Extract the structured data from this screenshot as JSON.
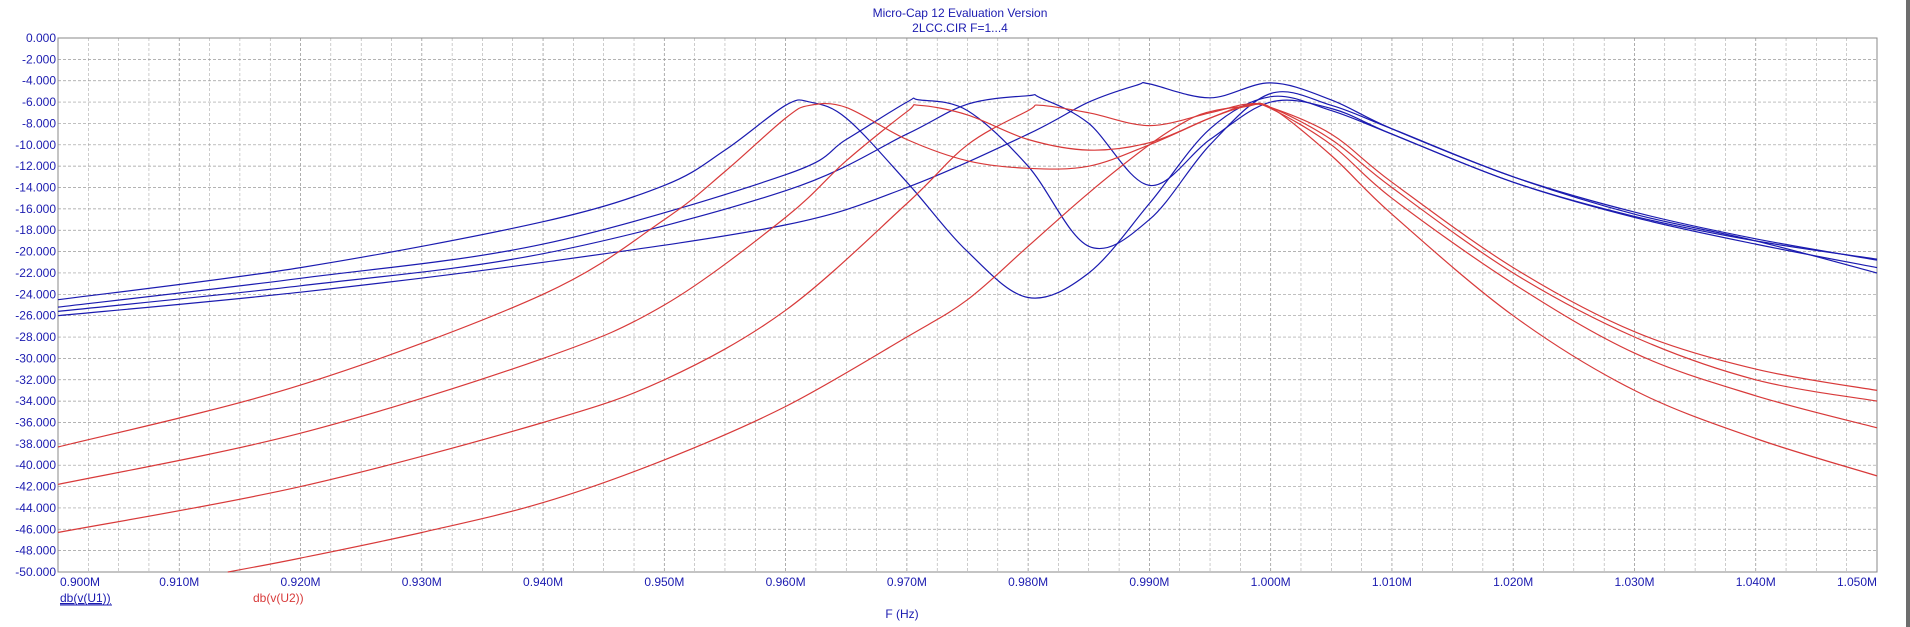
{
  "window": {
    "title_line1": "Micro-Cap 12 Evaluation Version",
    "title_line2": "2LCC.CIR F=1...4"
  },
  "colors": {
    "u1": "#1b1bb0",
    "u2": "#d83a3a",
    "grid": "#9a9a9a",
    "axis_text": "#1b1bb0",
    "frame": "#6d6d6d"
  },
  "chart_data": {
    "type": "line",
    "xlabel": "F (Hz)",
    "ylabel": "",
    "xlim": [
      0.9,
      1.05
    ],
    "ylim": [
      -50,
      0
    ],
    "grid": true,
    "x_unit_suffix": "M",
    "x_ticks": [
      "0.900M",
      "0.910M",
      "0.920M",
      "0.930M",
      "0.940M",
      "0.950M",
      "0.960M",
      "0.970M",
      "0.980M",
      "0.990M",
      "1.000M",
      "1.010M",
      "1.020M",
      "1.030M",
      "1.040M",
      "1.050M"
    ],
    "x_tick_values": [
      0.9,
      0.91,
      0.92,
      0.93,
      0.94,
      0.95,
      0.96,
      0.97,
      0.98,
      0.99,
      1.0,
      1.01,
      1.02,
      1.03,
      1.04,
      1.05
    ],
    "y_ticks": [
      "0.000",
      "-2.000",
      "-4.000",
      "-6.000",
      "-8.000",
      "-10.000",
      "-12.000",
      "-14.000",
      "-16.000",
      "-18.000",
      "-20.000",
      "-22.000",
      "-24.000",
      "-26.000",
      "-28.000",
      "-30.000",
      "-32.000",
      "-34.000",
      "-36.000",
      "-38.000",
      "-40.000",
      "-42.000",
      "-44.000",
      "-46.000",
      "-48.000",
      "-50.000"
    ],
    "y_tick_values": [
      0,
      -2,
      -4,
      -6,
      -8,
      -10,
      -12,
      -14,
      -16,
      -18,
      -20,
      -22,
      -24,
      -26,
      -28,
      -30,
      -32,
      -34,
      -36,
      -38,
      -40,
      -42,
      -44,
      -46,
      -48,
      -50
    ],
    "legend": [
      {
        "label": "db(v(U1))",
        "color": "#1b1bb0"
      },
      {
        "label": "db(v(U2))",
        "color": "#d83a3a"
      }
    ],
    "series": [
      {
        "group": "U1",
        "color": "#1b1bb0",
        "x": [
          0.9,
          0.92,
          0.94,
          0.95,
          0.955,
          0.96,
          0.962,
          0.965,
          0.97,
          0.975,
          0.98,
          0.985,
          0.99,
          0.995,
          1.0,
          1.005,
          1.01,
          1.02,
          1.03,
          1.04,
          1.05
        ],
        "y": [
          -24.5,
          -21.5,
          -17.2,
          -13.8,
          -10.5,
          -6.3,
          -6.0,
          -7.5,
          -13.5,
          -20.0,
          -24.3,
          -22.0,
          -15.5,
          -8.5,
          -5.5,
          -6.8,
          -9.0,
          -13.5,
          -16.7,
          -19.0,
          -20.7
        ]
      },
      {
        "group": "U1",
        "color": "#1b1bb0",
        "x": [
          0.9,
          0.92,
          0.94,
          0.96,
          0.965,
          0.97,
          0.971,
          0.975,
          0.98,
          0.985,
          0.99,
          0.995,
          1.0,
          1.005,
          1.01,
          1.02,
          1.03,
          1.04,
          1.05
        ],
        "y": [
          -25.2,
          -22.5,
          -19.3,
          -12.8,
          -9.5,
          -6.0,
          -5.8,
          -6.8,
          -12.0,
          -19.5,
          -17.0,
          -10.0,
          -5.2,
          -6.3,
          -8.5,
          -13.0,
          -16.3,
          -18.8,
          -20.8
        ]
      },
      {
        "group": "U1",
        "color": "#1b1bb0",
        "x": [
          0.9,
          0.92,
          0.94,
          0.96,
          0.97,
          0.975,
          0.98,
          0.981,
          0.985,
          0.99,
          0.995,
          1.0,
          1.005,
          1.01,
          1.02,
          1.03,
          1.04,
          1.05
        ],
        "y": [
          -25.6,
          -23.2,
          -20.2,
          -14.3,
          -9.0,
          -6.2,
          -5.4,
          -5.6,
          -8.0,
          -13.8,
          -9.5,
          -6.0,
          -6.6,
          -9.0,
          -13.5,
          -16.8,
          -19.3,
          -21.5
        ]
      },
      {
        "group": "U1",
        "color": "#1b1bb0",
        "x": [
          0.9,
          0.92,
          0.94,
          0.96,
          0.97,
          0.98,
          0.985,
          0.989,
          0.99,
          0.995,
          1.0,
          1.005,
          1.01,
          1.02,
          1.03,
          1.04,
          1.05
        ],
        "y": [
          -26.0,
          -23.8,
          -21.0,
          -17.5,
          -14.0,
          -9.0,
          -6.0,
          -4.4,
          -4.3,
          -5.6,
          -4.2,
          -5.8,
          -8.5,
          -13.0,
          -16.5,
          -19.0,
          -22.0
        ]
      },
      {
        "group": "U2",
        "color": "#d83a3a",
        "x": [
          0.9,
          0.92,
          0.94,
          0.95,
          0.955,
          0.96,
          0.962,
          0.965,
          0.97,
          0.975,
          0.98,
          0.985,
          0.99,
          0.995,
          0.998,
          1.0,
          1.005,
          1.01,
          1.02,
          1.03,
          1.04,
          1.05
        ],
        "y": [
          -38.3,
          -32.5,
          -24.0,
          -17.0,
          -12.5,
          -7.5,
          -6.3,
          -6.5,
          -9.5,
          -11.5,
          -12.2,
          -12.0,
          -10.0,
          -7.5,
          -6.3,
          -6.5,
          -9.0,
          -13.5,
          -21.5,
          -27.5,
          -31.0,
          -33.0
        ]
      },
      {
        "group": "U2",
        "color": "#d83a3a",
        "x": [
          0.9,
          0.92,
          0.94,
          0.95,
          0.96,
          0.965,
          0.97,
          0.971,
          0.975,
          0.98,
          0.985,
          0.99,
          0.995,
          0.998,
          1.0,
          1.005,
          1.01,
          1.02,
          1.03,
          1.04,
          1.05
        ],
        "y": [
          -41.8,
          -37.0,
          -30.0,
          -25.0,
          -16.8,
          -11.5,
          -6.9,
          -6.3,
          -7.2,
          -9.5,
          -10.5,
          -9.8,
          -7.5,
          -6.4,
          -6.5,
          -9.5,
          -14.0,
          -22.0,
          -28.0,
          -32.0,
          -34.0
        ]
      },
      {
        "group": "U2",
        "color": "#d83a3a",
        "x": [
          0.9,
          0.92,
          0.94,
          0.95,
          0.96,
          0.97,
          0.975,
          0.98,
          0.981,
          0.985,
          0.99,
          0.995,
          0.998,
          1.0,
          1.005,
          1.01,
          1.02,
          1.03,
          1.04,
          1.05
        ],
        "y": [
          -46.3,
          -42.0,
          -36.0,
          -32.0,
          -25.5,
          -15.5,
          -10.0,
          -6.8,
          -6.3,
          -7.0,
          -8.2,
          -7.0,
          -6.2,
          -6.6,
          -10.0,
          -15.0,
          -23.0,
          -29.5,
          -33.5,
          -36.5
        ]
      },
      {
        "group": "U2",
        "color": "#d83a3a",
        "x": [
          0.914,
          0.92,
          0.93,
          0.94,
          0.95,
          0.96,
          0.97,
          0.975,
          0.98,
          0.985,
          0.99,
          0.993,
          0.995,
          0.998,
          1.0,
          1.005,
          1.01,
          1.02,
          1.03,
          1.04,
          1.05
        ],
        "y": [
          -50.0,
          -48.7,
          -46.3,
          -43.5,
          -39.5,
          -34.5,
          -28.0,
          -24.5,
          -19.5,
          -14.5,
          -10.0,
          -7.8,
          -6.9,
          -6.4,
          -6.5,
          -11.0,
          -16.5,
          -26.0,
          -33.0,
          -37.5,
          -41.0
        ]
      }
    ]
  }
}
